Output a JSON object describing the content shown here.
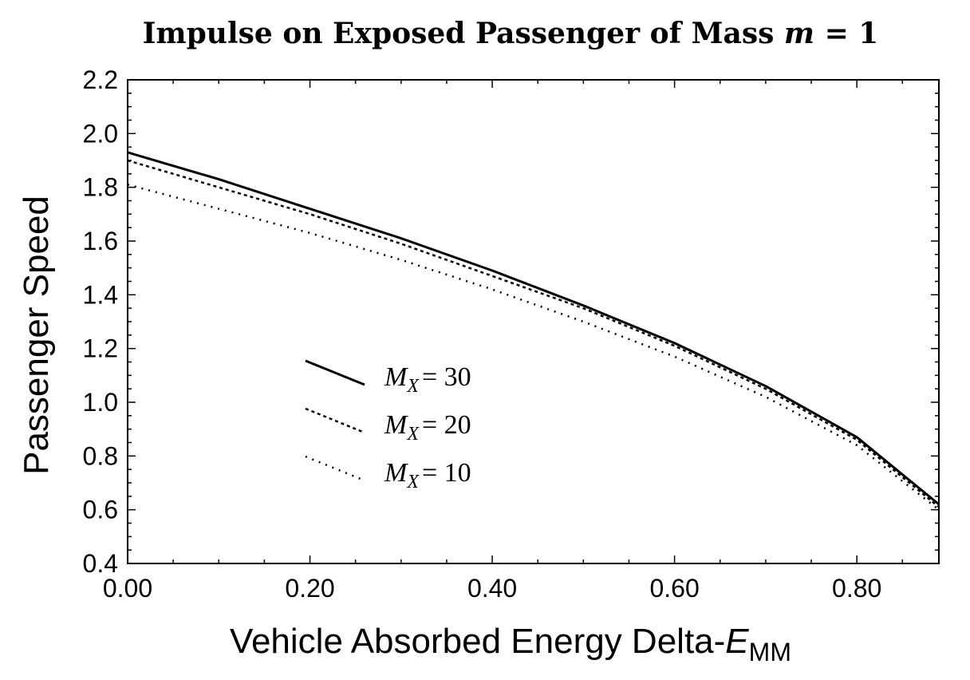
{
  "chart_data": {
    "type": "line",
    "title_main": "Impulse on Exposed Passenger of Mass",
    "title_var": "m",
    "title_tail": "= 1",
    "xlabel": "Vehicle Absorbed Energy Delta-",
    "xlabel_var": "E",
    "xlabel_sub": "MM",
    "ylabel": "Passenger Speed",
    "xlim": [
      0,
      0.89
    ],
    "ylim": [
      0.4,
      2.2
    ],
    "x_ticks": [
      0,
      0.2,
      0.4,
      0.6,
      0.8
    ],
    "x_tick_labels": [
      "0.00",
      "0.20",
      "0.40",
      "0.60",
      "0.80"
    ],
    "y_ticks": [
      0.4,
      0.6,
      0.8,
      1.0,
      1.2,
      1.4,
      1.6,
      1.8,
      2.0,
      2.2
    ],
    "y_tick_labels": [
      "0.4",
      "0.6",
      "0.8",
      "1.0",
      "1.2",
      "1.4",
      "1.6",
      "1.8",
      "2.0",
      "2.2"
    ],
    "grid": false,
    "legend_position": "middle-left",
    "x": [
      0.0,
      0.1,
      0.2,
      0.3,
      0.4,
      0.5,
      0.6,
      0.7,
      0.8,
      0.89
    ],
    "series": [
      {
        "legend_var": "M",
        "legend_sub": "X",
        "legend_value": "= 30",
        "style": "solid",
        "values": [
          1.93,
          1.83,
          1.72,
          1.61,
          1.49,
          1.36,
          1.22,
          1.06,
          0.87,
          0.62
        ]
      },
      {
        "legend_var": "M",
        "legend_sub": "X",
        "legend_value": "= 20",
        "style": "dashed",
        "values": [
          1.9,
          1.8,
          1.7,
          1.59,
          1.47,
          1.35,
          1.21,
          1.05,
          0.86,
          0.61
        ]
      },
      {
        "legend_var": "M",
        "legend_sub": "X",
        "legend_value": "= 10",
        "style": "dotted",
        "values": [
          1.81,
          1.72,
          1.63,
          1.53,
          1.42,
          1.3,
          1.17,
          1.02,
          0.84,
          0.6
        ]
      }
    ]
  }
}
